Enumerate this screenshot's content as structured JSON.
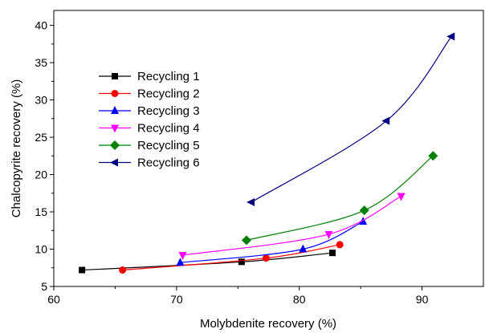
{
  "chart_data": {
    "type": "line",
    "xlabel": "Molybdenite recovery (%)",
    "ylabel": "Chalcopyrite recovery (%)",
    "xlim": [
      60,
      95
    ],
    "ylim": [
      5,
      42
    ],
    "x_ticks": [
      60,
      70,
      80,
      90
    ],
    "y_ticks": [
      5,
      10,
      15,
      20,
      25,
      30,
      35,
      40
    ],
    "grid": false,
    "legend_position": "top-left",
    "series": [
      {
        "name": "Recycling 1",
        "color": "#000000",
        "marker": "square",
        "x": [
          62.3,
          75.3,
          82.7
        ],
        "y": [
          7.2,
          8.3,
          9.5
        ]
      },
      {
        "name": "Recycling 2",
        "color": "#ff0000",
        "marker": "circle",
        "x": [
          65.6,
          77.3,
          83.3
        ],
        "y": [
          7.2,
          8.8,
          10.6
        ]
      },
      {
        "name": "Recycling 3",
        "color": "#0000ff",
        "marker": "triangle-up",
        "x": [
          70.3,
          80.3,
          85.2
        ],
        "y": [
          8.2,
          10.0,
          13.7
        ]
      },
      {
        "name": "Recycling 4",
        "color": "#ff00ff",
        "marker": "triangle-down",
        "x": [
          70.5,
          82.4,
          88.3
        ],
        "y": [
          9.2,
          12.0,
          17.1
        ]
      },
      {
        "name": "Recycling 5",
        "color": "#008000",
        "marker": "diamond",
        "x": [
          75.7,
          85.3,
          90.9
        ],
        "y": [
          11.2,
          15.2,
          22.5
        ]
      },
      {
        "name": "Recycling 6",
        "color": "#000080",
        "marker": "triangle-left",
        "x": [
          76.1,
          87.1,
          92.4
        ],
        "y": [
          16.3,
          27.2,
          38.5
        ]
      }
    ]
  }
}
